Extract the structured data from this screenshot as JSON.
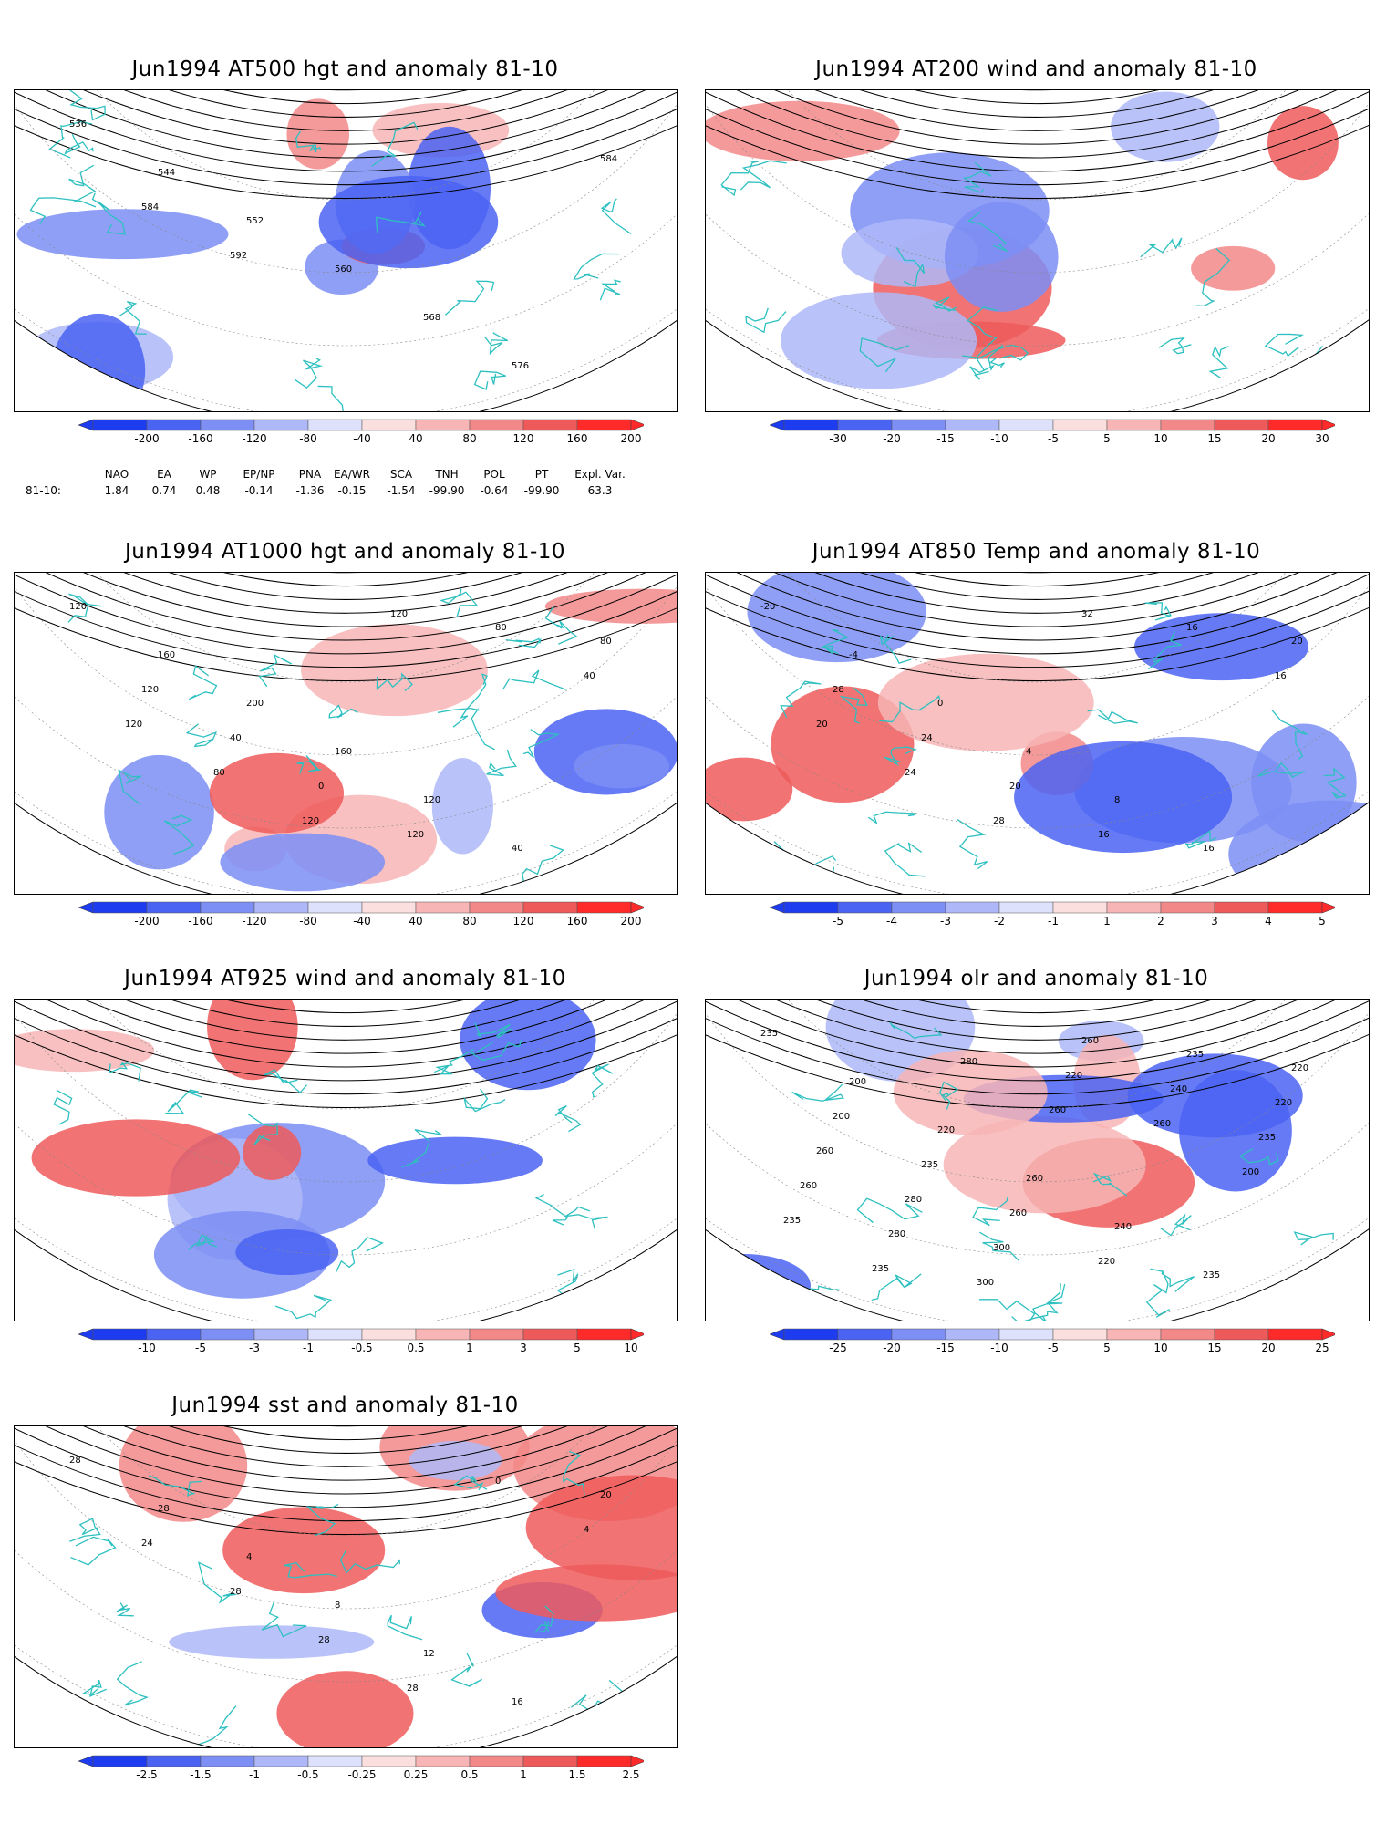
{
  "panels": [
    {
      "id": "p1",
      "title": "Jun1994 AT500 hgt and anomaly 81-10",
      "ticks": [
        "-200",
        "-160",
        "-120",
        "-80",
        "-40",
        "40",
        "80",
        "120",
        "160",
        "200"
      ],
      "contour_labels": [
        "536",
        "544",
        "552",
        "560",
        "568",
        "576",
        "584",
        "584",
        "592"
      ]
    },
    {
      "id": "p2",
      "title": "Jun1994 AT200 wind and anomaly 81-10",
      "ticks": [
        "-30",
        "-20",
        "-15",
        "-10",
        "-5",
        "5",
        "10",
        "15",
        "20",
        "30"
      ],
      "contour_labels": []
    },
    {
      "id": "p3",
      "title": "Jun1994 AT1000 hgt and anomaly 81-10",
      "ticks": [
        "-200",
        "-160",
        "-120",
        "-80",
        "-40",
        "40",
        "80",
        "120",
        "160",
        "200"
      ],
      "contour_labels": [
        "120",
        "160",
        "200",
        "160",
        "120",
        "40",
        "80",
        "120",
        "40",
        "0",
        "120",
        "80",
        "40",
        "120",
        "80",
        "120",
        "120"
      ]
    },
    {
      "id": "p4",
      "title": "Jun1994 AT850 Temp and anomaly 81-10",
      "ticks": [
        "-5",
        "-4",
        "-3",
        "-2",
        "-1",
        "1",
        "2",
        "3",
        "4",
        "5"
      ],
      "contour_labels": [
        "-20",
        "-4",
        "0",
        "4",
        "8",
        "16",
        "20",
        "28",
        "24",
        "20",
        "16",
        "16",
        "16",
        "20",
        "24",
        "28",
        "32"
      ]
    },
    {
      "id": "p5",
      "title": "Jun1994 AT925 wind and anomaly 81-10",
      "ticks": [
        "-10",
        "-5",
        "-3",
        "-1",
        "-0.5",
        "0.5",
        "1",
        "3",
        "5",
        "10"
      ],
      "contour_labels": []
    },
    {
      "id": "p6",
      "title": "Jun1994 olr and anomaly 81-10",
      "ticks": [
        "-25",
        "-20",
        "-15",
        "-10",
        "-5",
        "5",
        "10",
        "15",
        "20",
        "25"
      ],
      "contour_labels": [
        "235",
        "200",
        "220",
        "260",
        "240",
        "235",
        "220",
        "200",
        "235",
        "260",
        "220",
        "235",
        "220",
        "260",
        "280",
        "300",
        "260",
        "240",
        "235",
        "260",
        "280",
        "300",
        "220",
        "260",
        "200",
        "235",
        "235",
        "280",
        "260"
      ]
    },
    {
      "id": "p7",
      "title": "Jun1994 sst and anomaly 81-10",
      "ticks": [
        "-2.5",
        "-1.5",
        "-1",
        "-0.5",
        "-0.25",
        "0.25",
        "0.5",
        "1",
        "1.5",
        "2.5"
      ],
      "contour_labels": [
        "28",
        "28",
        "4",
        "8",
        "12",
        "16",
        "20",
        "24",
        "28",
        "28",
        "28",
        "0",
        "4"
      ]
    }
  ],
  "stats": {
    "header": [
      "NAO",
      "EA",
      "WP",
      "EP/NP",
      "PNA",
      "EA/WR",
      "SCA",
      "TNH",
      "POL",
      "PT",
      "Expl. Var."
    ],
    "row_label": "81-10:",
    "values": [
      "1.84",
      "0.74",
      "0.48",
      "-0.14",
      "-1.36",
      "-0.15",
      "-1.54",
      "-99.90",
      "-0.64",
      "-99.90",
      "63.3"
    ]
  },
  "colors": {
    "blues": [
      "#1d3cf0",
      "#4a63f2",
      "#7d8ef5",
      "#aeb8f8",
      "#dde1fb"
    ],
    "reds": [
      "#fbdede",
      "#f7b5b5",
      "#f38888",
      "#ee5a5a",
      "#ff2a2a"
    ],
    "coast": "#2ec0c0",
    "contour": "#000000"
  }
}
